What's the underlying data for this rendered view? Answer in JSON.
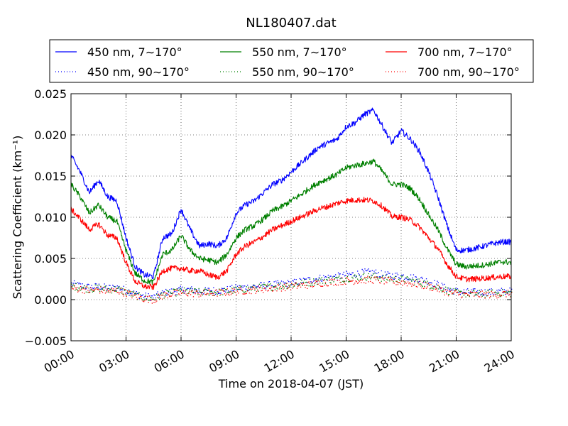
{
  "chart_data": {
    "type": "line",
    "title": "NL180407.dat",
    "xlabel": "Time on 2018-04-07 (JST)",
    "ylabel": "Scattering Coefficient (km⁻¹)",
    "xlim": [
      0,
      24
    ],
    "ylim": [
      -0.005,
      0.025
    ],
    "x_ticks": [
      0,
      3,
      6,
      9,
      12,
      15,
      18,
      21,
      24
    ],
    "x_tick_labels": [
      "00:00",
      "03:00",
      "06:00",
      "09:00",
      "12:00",
      "15:00",
      "18:00",
      "21:00",
      "24:00"
    ],
    "y_ticks": [
      -0.005,
      0.0,
      0.005,
      0.01,
      0.015,
      0.02,
      0.025
    ],
    "y_tick_labels": [
      "−0.005",
      "0.000",
      "0.005",
      "0.010",
      "0.015",
      "0.020",
      "0.025"
    ],
    "grid": true,
    "legend_position": "top",
    "x": [
      0.0,
      0.5,
      1.0,
      1.5,
      2.0,
      2.5,
      3.0,
      3.5,
      4.0,
      4.5,
      5.0,
      5.5,
      6.0,
      6.5,
      7.0,
      7.5,
      8.0,
      8.5,
      9.0,
      9.5,
      10.0,
      10.5,
      11.0,
      11.5,
      12.0,
      12.5,
      13.0,
      13.5,
      14.0,
      14.5,
      15.0,
      15.5,
      16.0,
      16.5,
      17.0,
      17.5,
      18.0,
      18.5,
      19.0,
      19.5,
      20.0,
      20.5,
      21.0,
      21.5,
      22.0,
      22.5,
      23.0,
      23.5,
      24.0
    ],
    "series": [
      {
        "name": "450 nm, 7∼170°",
        "color": "#0000ff",
        "style": "solid",
        "values": [
          0.0175,
          0.0155,
          0.013,
          0.0145,
          0.0125,
          0.012,
          0.0075,
          0.004,
          0.003,
          0.0028,
          0.0075,
          0.008,
          0.011,
          0.0085,
          0.0065,
          0.0068,
          0.0065,
          0.0075,
          0.0105,
          0.0115,
          0.012,
          0.013,
          0.014,
          0.0145,
          0.0155,
          0.0165,
          0.0175,
          0.0185,
          0.019,
          0.0195,
          0.021,
          0.0215,
          0.0225,
          0.023,
          0.021,
          0.019,
          0.0205,
          0.0195,
          0.018,
          0.0155,
          0.0125,
          0.009,
          0.006,
          0.006,
          0.0062,
          0.0065,
          0.0068,
          0.007,
          0.007
        ]
      },
      {
        "name": "550 nm, 7∼170°",
        "color": "#008000",
        "style": "solid",
        "values": [
          0.014,
          0.0125,
          0.0105,
          0.0115,
          0.01,
          0.0095,
          0.006,
          0.0032,
          0.0023,
          0.0021,
          0.0055,
          0.006,
          0.0078,
          0.006,
          0.005,
          0.0048,
          0.0045,
          0.0055,
          0.0075,
          0.0085,
          0.009,
          0.0098,
          0.0108,
          0.0113,
          0.012,
          0.0127,
          0.0135,
          0.0142,
          0.0147,
          0.0152,
          0.016,
          0.0163,
          0.0165,
          0.0168,
          0.0155,
          0.014,
          0.014,
          0.0135,
          0.0122,
          0.0103,
          0.0085,
          0.0062,
          0.0043,
          0.004,
          0.0041,
          0.0042,
          0.0044,
          0.0046,
          0.0045
        ]
      },
      {
        "name": "700 nm, 7∼170°",
        "color": "#ff0000",
        "style": "solid",
        "values": [
          0.011,
          0.0098,
          0.0085,
          0.0092,
          0.0078,
          0.0075,
          0.0045,
          0.0022,
          0.0016,
          0.0015,
          0.0035,
          0.0038,
          0.0038,
          0.0035,
          0.0035,
          0.003,
          0.0027,
          0.0035,
          0.0055,
          0.0065,
          0.007,
          0.0077,
          0.0085,
          0.009,
          0.0095,
          0.01,
          0.0105,
          0.011,
          0.0113,
          0.0117,
          0.012,
          0.0121,
          0.0121,
          0.012,
          0.0113,
          0.0101,
          0.01,
          0.0097,
          0.0088,
          0.0075,
          0.0062,
          0.0043,
          0.0028,
          0.0025,
          0.0025,
          0.0026,
          0.0027,
          0.0028,
          0.0028
        ]
      },
      {
        "name": "450 nm, 90∼170°",
        "color": "#0000ff",
        "style": "dotted",
        "values": [
          0.0019,
          0.0017,
          0.0015,
          0.0016,
          0.0014,
          0.0015,
          0.0011,
          0.0007,
          0.0004,
          0.0003,
          0.0008,
          0.001,
          0.0012,
          0.0012,
          0.001,
          0.0011,
          0.0011,
          0.0012,
          0.0014,
          0.0015,
          0.0016,
          0.0017,
          0.0018,
          0.0019,
          0.002,
          0.0022,
          0.0024,
          0.0026,
          0.0027,
          0.0028,
          0.003,
          0.0031,
          0.0033,
          0.0033,
          0.003,
          0.0029,
          0.0029,
          0.0027,
          0.0025,
          0.0022,
          0.0018,
          0.0013,
          0.001,
          0.0009,
          0.0009,
          0.0009,
          0.0009,
          0.001,
          0.001
        ]
      },
      {
        "name": "550 nm, 90∼170°",
        "color": "#008000",
        "style": "dotted",
        "values": [
          0.0016,
          0.0015,
          0.0013,
          0.0014,
          0.0012,
          0.0013,
          0.0009,
          0.0005,
          0.0002,
          0.0001,
          0.0006,
          0.0008,
          0.001,
          0.001,
          0.0009,
          0.0009,
          0.0009,
          0.001,
          0.0012,
          0.0013,
          0.0014,
          0.0015,
          0.0016,
          0.0017,
          0.0018,
          0.002,
          0.0021,
          0.0023,
          0.0024,
          0.0025,
          0.0026,
          0.0027,
          0.0028,
          0.0028,
          0.0026,
          0.0025,
          0.0025,
          0.0023,
          0.0021,
          0.0018,
          0.0015,
          0.0011,
          0.0008,
          0.0007,
          0.0007,
          0.0007,
          0.0008,
          0.0008,
          0.0008
        ]
      },
      {
        "name": "700 nm, 90∼170°",
        "color": "#ff0000",
        "style": "dotted",
        "values": [
          0.0014,
          0.0013,
          0.0011,
          0.0012,
          0.001,
          0.0011,
          0.0008,
          0.0004,
          0.0001,
          0.0,
          0.0005,
          0.0007,
          0.0008,
          0.0008,
          0.0007,
          0.0008,
          0.0008,
          0.0009,
          0.001,
          0.0011,
          0.0012,
          0.0013,
          0.0014,
          0.0015,
          0.0016,
          0.0017,
          0.0018,
          0.002,
          0.0021,
          0.0022,
          0.0023,
          0.0023,
          0.0024,
          0.0024,
          0.0023,
          0.0022,
          0.0021,
          0.002,
          0.0018,
          0.0016,
          0.0013,
          0.0009,
          0.0007,
          0.0006,
          0.0006,
          0.0006,
          0.0006,
          0.0007,
          0.0007
        ]
      }
    ]
  }
}
